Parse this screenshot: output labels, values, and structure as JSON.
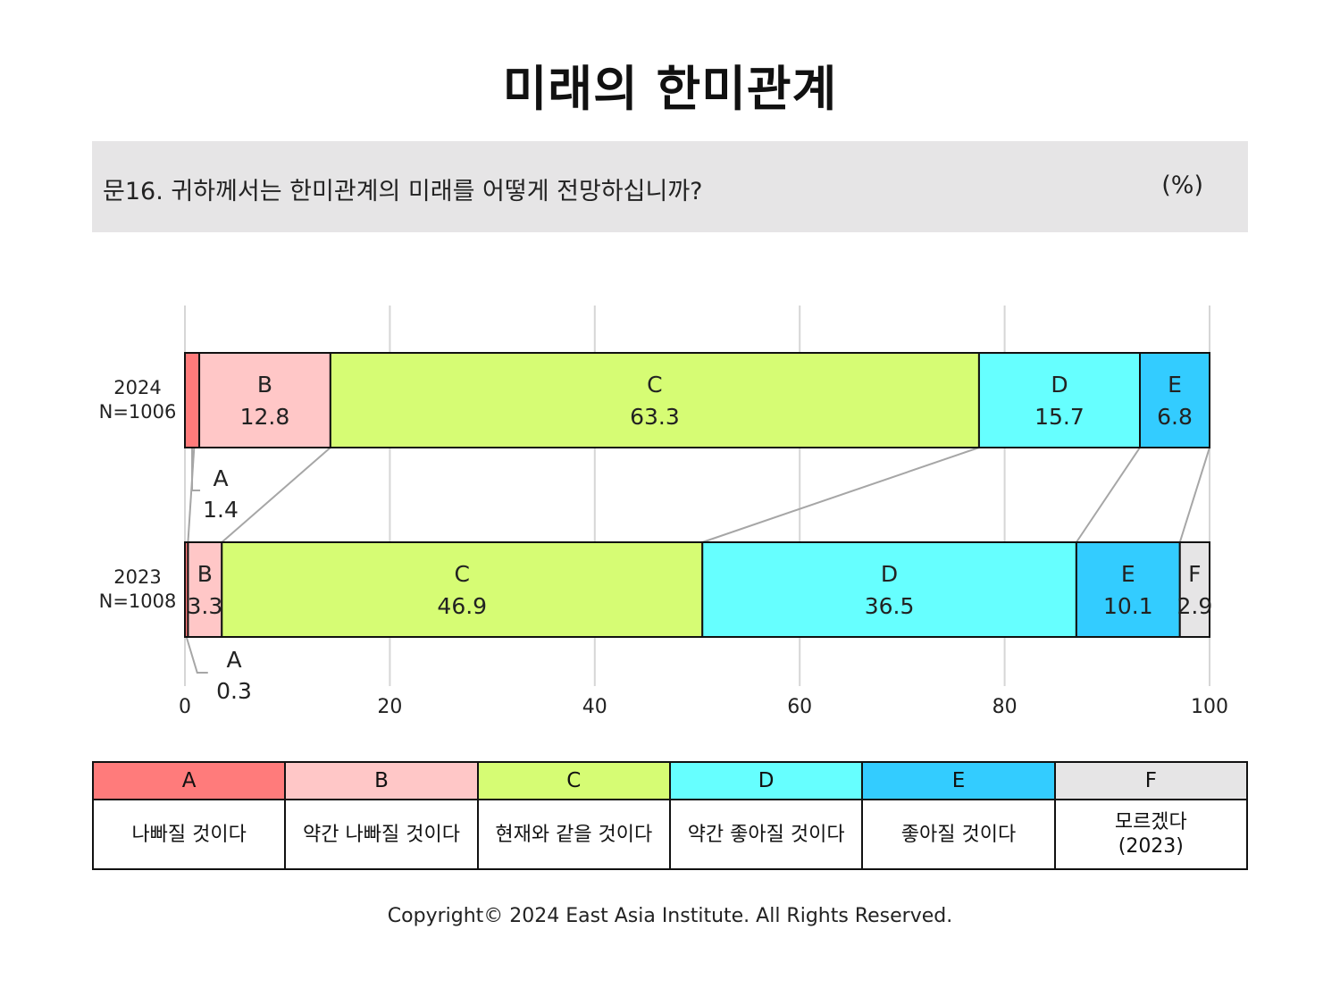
{
  "title": "미래의 한미관계",
  "question": "문16. 귀하께서는 한미관계의 미래를 어떻게 전망하십니까?",
  "unit": "(%)",
  "colors": {
    "A": "#ff7b7b",
    "B": "#ffc7c7",
    "C": "#d6fc74",
    "D": "#66ffff",
    "E": "#33ccff",
    "F": "#e6e5e6"
  },
  "chart_data": {
    "type": "bar",
    "orientation": "horizontal",
    "stacked": true,
    "xlim": [
      0,
      100
    ],
    "xticks": [
      "0",
      "20",
      "40",
      "60",
      "80",
      "100"
    ],
    "grid": true,
    "categories": [
      {
        "year": "2024",
        "n": "N=1006"
      },
      {
        "year": "2023",
        "n": "N=1008"
      }
    ],
    "series": [
      {
        "name": "A",
        "values": [
          1.4,
          0.3
        ]
      },
      {
        "name": "B",
        "values": [
          12.8,
          3.3
        ]
      },
      {
        "name": "C",
        "values": [
          63.3,
          46.9
        ]
      },
      {
        "name": "D",
        "values": [
          15.7,
          36.5
        ]
      },
      {
        "name": "E",
        "values": [
          6.8,
          10.1
        ]
      },
      {
        "name": "F",
        "values": [
          null,
          2.9
        ]
      }
    ]
  },
  "legend": [
    {
      "code": "A",
      "label": "나빠질 것이다"
    },
    {
      "code": "B",
      "label": "약간 나빠질 것이다"
    },
    {
      "code": "C",
      "label": "현재와 같을 것이다"
    },
    {
      "code": "D",
      "label": "약간 좋아질 것이다"
    },
    {
      "code": "E",
      "label": "좋아질 것이다"
    },
    {
      "code": "F",
      "label": "모르겠다\n(2023)"
    }
  ],
  "copyright": "Copyright© 2024 East Asia Institute. All Rights Reserved."
}
